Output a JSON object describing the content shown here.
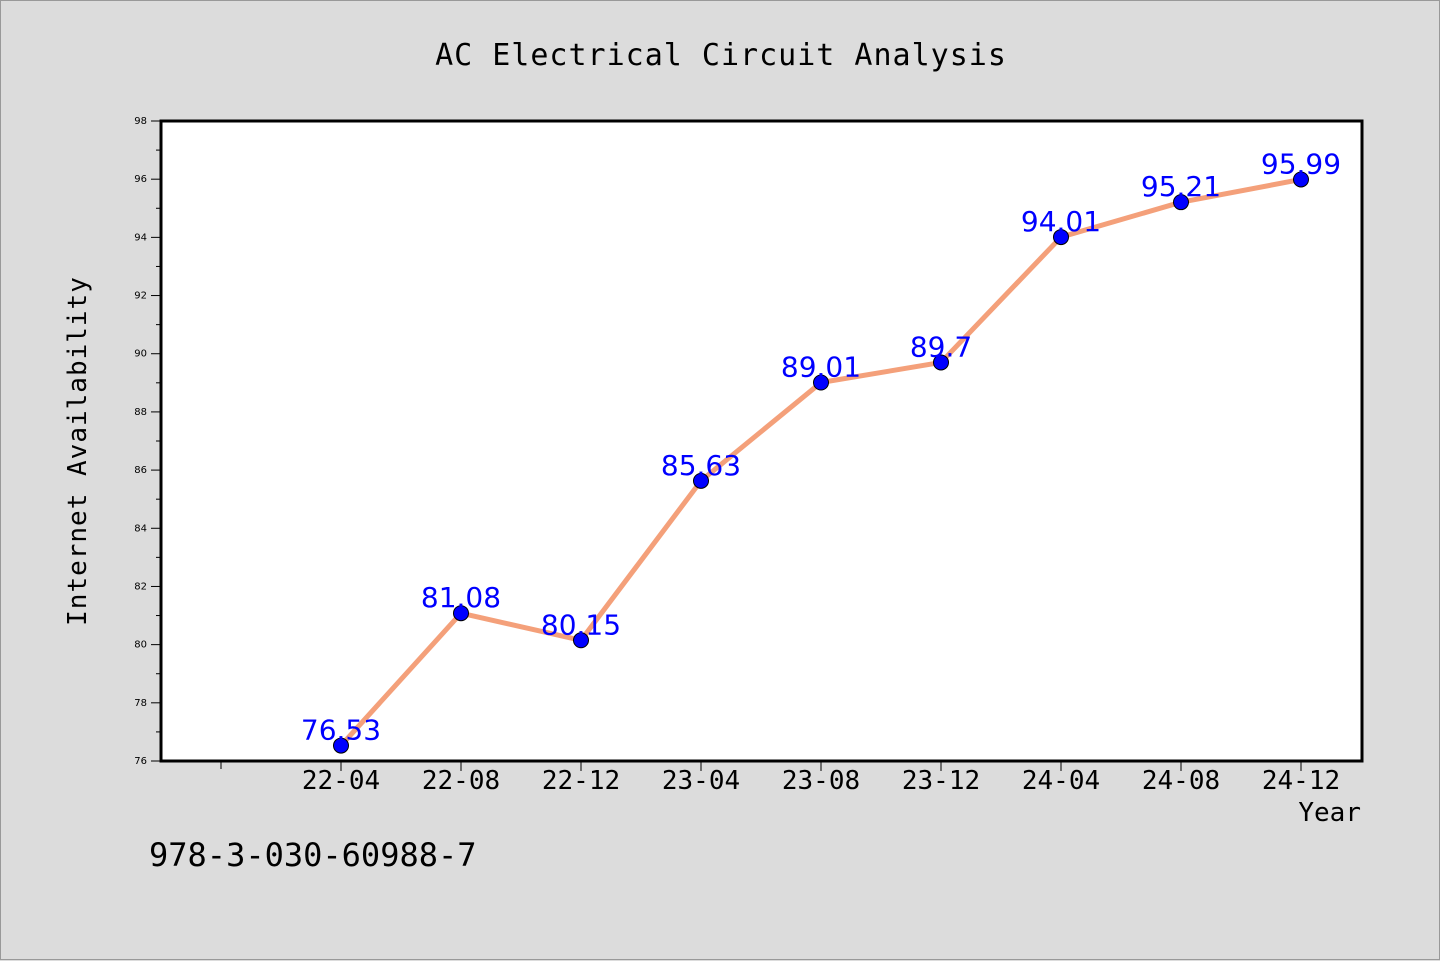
{
  "chart_data": {
    "type": "line",
    "title": "AC Electrical Circuit Analysis",
    "xlabel": "Year",
    "ylabel": "Internet Availability",
    "categories": [
      "22-04",
      "22-08",
      "22-12",
      "23-04",
      "23-08",
      "23-12",
      "24-04",
      "24-08",
      "24-12"
    ],
    "series": [
      {
        "values": [
          76.53,
          81.08,
          80.15,
          85.63,
          89.01,
          89.7,
          94.01,
          95.21,
          95.99
        ]
      }
    ],
    "data_labels": [
      "76.53",
      "81.08",
      "80.15",
      "85.63",
      "89.01",
      "89.7",
      "94.01",
      "95.21",
      "95.99"
    ],
    "ylim": [
      76,
      98
    ],
    "yticks": [
      "76",
      "78",
      "80",
      "82",
      "84",
      "86",
      "88",
      "90",
      "92",
      "94",
      "96",
      "98"
    ],
    "grid": false,
    "legend": "none",
    "colors": {
      "line": "#f4a07a",
      "marker": "#0000ff",
      "label": "#0000ff",
      "axis": "#000000"
    }
  },
  "annotation": "978-3-030-60988-7"
}
